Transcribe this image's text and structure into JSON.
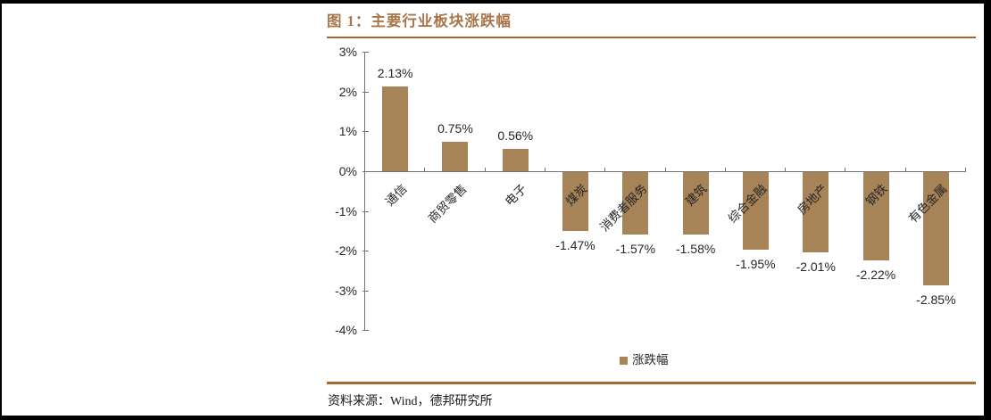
{
  "header": {
    "title": "图 1：主要行业板块涨跌幅"
  },
  "footer": {
    "source": "资料来源：Wind，德邦研究所"
  },
  "colors": {
    "bar": "#A78358",
    "accent_rule": "#A5672D",
    "title_text": "#A9754A",
    "axis": "#737373",
    "label_text": "#262626",
    "frame": "#000000"
  },
  "chart_data": {
    "type": "bar",
    "title": "主要行业板块涨跌幅",
    "categories": [
      "通信",
      "商贸零售",
      "电子",
      "煤炭",
      "消费者服务",
      "建筑",
      "综合金融",
      "房地产",
      "钢铁",
      "有色金属"
    ],
    "values": [
      2.13,
      0.75,
      0.56,
      -1.47,
      -1.57,
      -1.58,
      -1.95,
      -2.01,
      -2.22,
      -2.85
    ],
    "value_labels": [
      "2.13%",
      "0.75%",
      "0.56%",
      "-1.47%",
      "-1.57%",
      "-1.58%",
      "-1.95%",
      "-2.01%",
      "-2.22%",
      "-2.85%"
    ],
    "unit": "%",
    "ylim": [
      -4,
      3
    ],
    "yticks": [
      {
        "value": 3,
        "label": "3%"
      },
      {
        "value": 2,
        "label": "2%"
      },
      {
        "value": 1,
        "label": "1%"
      },
      {
        "value": 0,
        "label": "0%"
      },
      {
        "value": -1,
        "label": "-1%"
      },
      {
        "value": -2,
        "label": "-2%"
      },
      {
        "value": -3,
        "label": "-3%"
      },
      {
        "value": -4,
        "label": "-4%"
      }
    ],
    "legend": [
      {
        "label": "涨跌幅",
        "color": "#A78358"
      }
    ],
    "legend_position": "bottom-center",
    "grid": false,
    "xlabel": "",
    "ylabel": ""
  }
}
